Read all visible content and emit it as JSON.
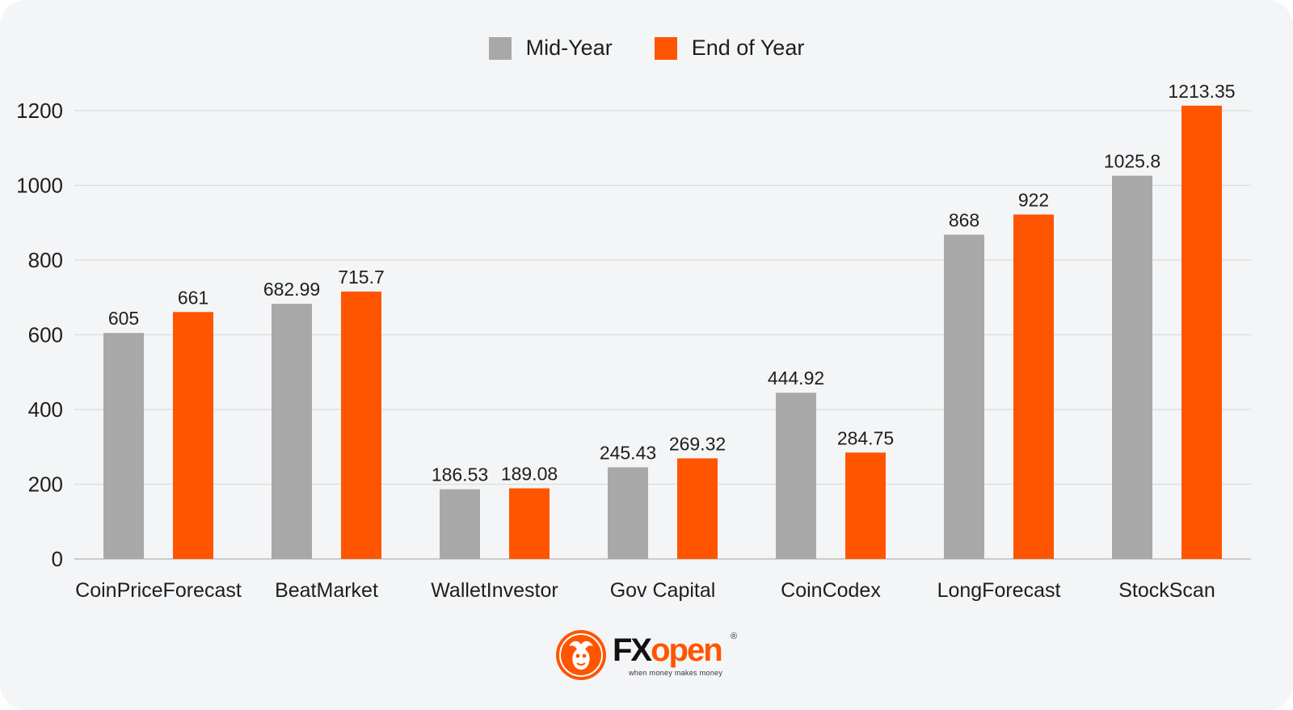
{
  "chart_data": {
    "type": "bar",
    "categories": [
      "CoinPriceForecast",
      "BeatMarket",
      "WalletInvestor",
      "Gov Capital",
      "CoinCodex",
      "LongForecast",
      "StockScan"
    ],
    "series": [
      {
        "name": "Mid-Year",
        "color": "#a8a8a8",
        "values": [
          605,
          682.99,
          186.53,
          245.43,
          444.92,
          868,
          1025.8
        ]
      },
      {
        "name": "End of Year",
        "color": "#ff5500",
        "values": [
          661,
          715.7,
          189.08,
          269.32,
          284.75,
          922,
          1213.35
        ]
      }
    ],
    "y_ticks": [
      "0",
      "200",
      "400",
      "600",
      "800",
      "1000",
      "1200"
    ],
    "ylim": [
      0,
      1200
    ],
    "grid": true,
    "legend": "top-center",
    "title": "",
    "xlabel": "",
    "ylabel": ""
  },
  "logo": {
    "brand_fx": "FX",
    "brand_open": "open",
    "registered": "®",
    "tagline": "when money makes money",
    "icon": "bull-emblem-icon",
    "color": "#ff5500"
  }
}
